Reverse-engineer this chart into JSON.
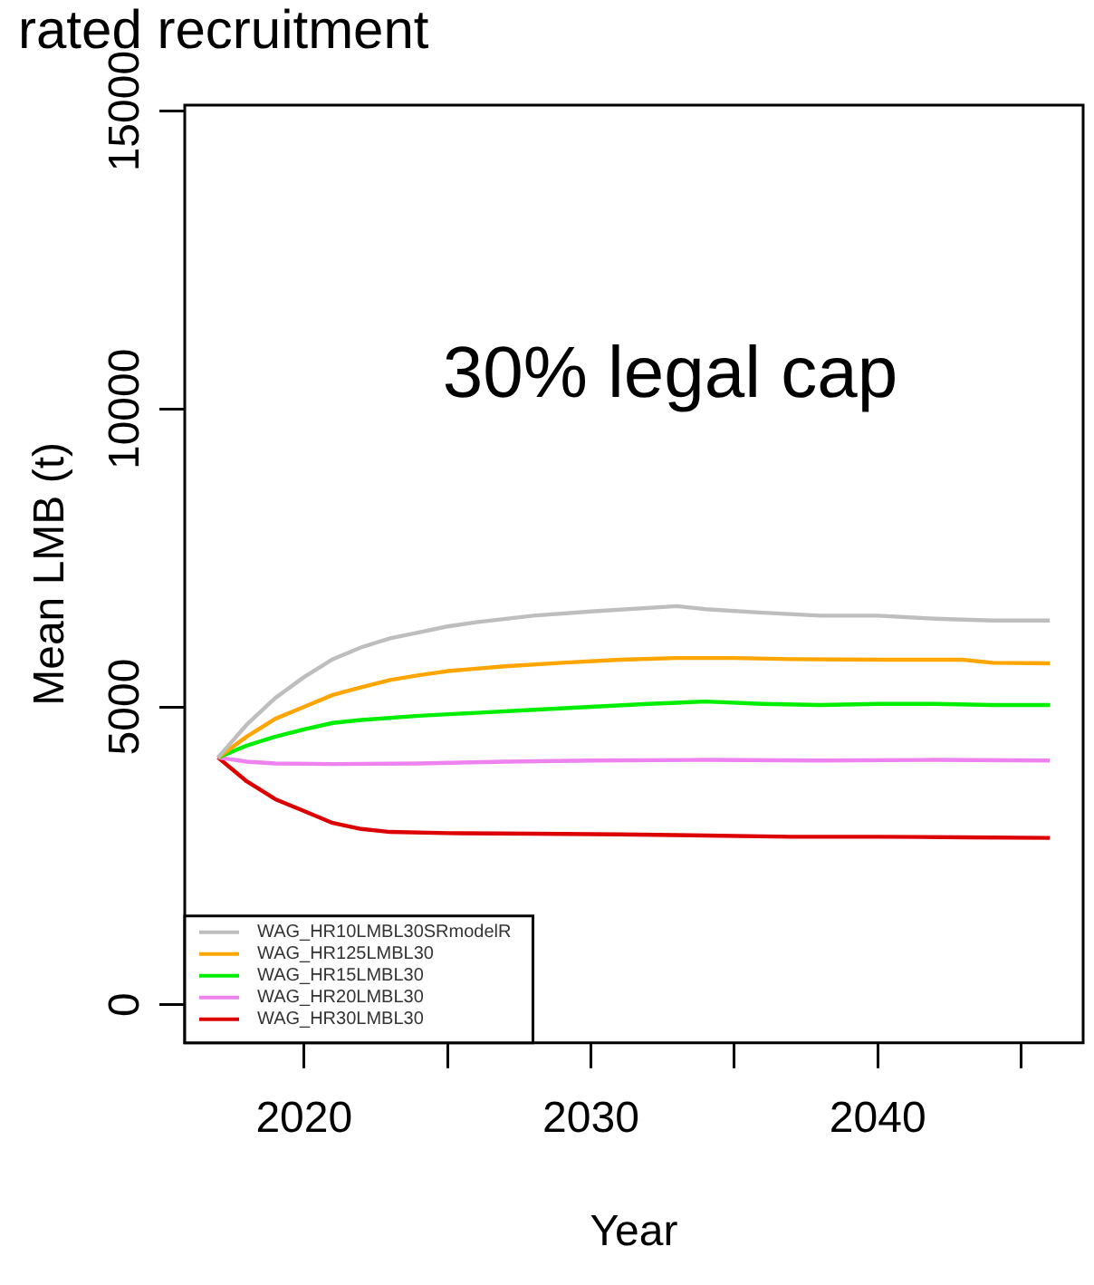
{
  "chart_data": {
    "type": "line",
    "title": "rated recruitment",
    "xlabel": "Year",
    "ylabel": "Mean LMB (t)",
    "annotations": [
      "30% legal cap"
    ],
    "xlim": [
      2015.84,
      2047.16
    ],
    "xticks": [
      2020,
      {
        "value": 2025,
        "label": null
      },
      2030,
      {
        "value": 2035,
        "label": null
      },
      2040,
      {
        "value": 2045,
        "label": null
      }
    ],
    "ylim": [
      -640,
      15100
    ],
    "yticks": [
      0,
      5000,
      10000,
      15000
    ],
    "grid": false,
    "legend": "bottom left",
    "line_style": "solid",
    "marker": "none",
    "series": [
      {
        "name": "WAG_HR10LMBL30SRmodelR",
        "color": "#bebebe",
        "x": [
          2017,
          2018,
          2019,
          2020,
          2021,
          2022,
          2023,
          2024,
          2025,
          2026,
          2028,
          2030,
          2033,
          2034,
          2036,
          2038,
          2040,
          2042,
          2044,
          2046
        ],
        "values": [
          4150,
          4700,
          5150,
          5500,
          5800,
          6000,
          6150,
          6250,
          6350,
          6420,
          6530,
          6600,
          6690,
          6640,
          6580,
          6530,
          6530,
          6480,
          6450,
          6450
        ]
      },
      {
        "name": "WAG_HR125LMBL30",
        "color": "#ffa500",
        "x": [
          2017,
          2018,
          2019,
          2020,
          2021,
          2022,
          2023,
          2024,
          2025,
          2027,
          2029,
          2031,
          2033,
          2035,
          2037,
          2040,
          2043,
          2044,
          2046
        ],
        "values": [
          4150,
          4500,
          4800,
          5000,
          5200,
          5330,
          5450,
          5530,
          5600,
          5680,
          5740,
          5790,
          5820,
          5820,
          5800,
          5790,
          5790,
          5740,
          5730
        ]
      },
      {
        "name": "WAG_HR15LMBL30",
        "color": "#00ee00",
        "x": [
          2017,
          2018,
          2019,
          2020,
          2021,
          2022,
          2024,
          2026,
          2028,
          2030,
          2032,
          2034,
          2036,
          2038,
          2040,
          2042,
          2044,
          2046
        ],
        "values": [
          4150,
          4350,
          4500,
          4620,
          4730,
          4780,
          4850,
          4900,
          4950,
          5000,
          5050,
          5090,
          5050,
          5030,
          5050,
          5050,
          5030,
          5030
        ]
      },
      {
        "name": "WAG_HR20LMBL30",
        "color": "#ee82ee",
        "x": [
          2017,
          2018,
          2019,
          2021,
          2024,
          2027,
          2030,
          2034,
          2038,
          2042,
          2046
        ],
        "values": [
          4150,
          4080,
          4050,
          4040,
          4050,
          4080,
          4100,
          4110,
          4100,
          4110,
          4100
        ]
      },
      {
        "name": "WAG_HR30LMBL30",
        "color": "#dd0000",
        "x": [
          2017,
          2018,
          2019,
          2020,
          2021,
          2022,
          2023,
          2025,
          2028,
          2031,
          2034,
          2037,
          2040,
          2043,
          2046
        ],
        "values": [
          4150,
          3750,
          3450,
          3250,
          3050,
          2950,
          2900,
          2880,
          2870,
          2860,
          2840,
          2820,
          2820,
          2810,
          2800
        ]
      }
    ]
  }
}
